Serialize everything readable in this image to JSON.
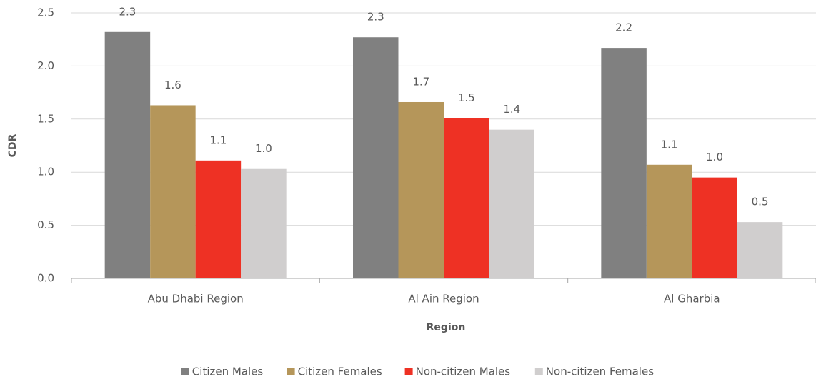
{
  "chart_data": {
    "type": "bar",
    "x_label": "Region",
    "y_label": "CDR",
    "categories": [
      "Abu Dhabi Region",
      "Al Ain  Region",
      "Al Gharbia"
    ],
    "series": [
      {
        "name": "Citizen Males",
        "color": "#808080",
        "values": [
          2.32,
          2.27,
          2.17
        ],
        "value_labels": [
          "2.3",
          "2.3",
          "2.2"
        ]
      },
      {
        "name": "Citizen Females",
        "color": "#b5965a",
        "values": [
          1.63,
          1.66,
          1.07
        ],
        "value_labels": [
          "1.6",
          "1.7",
          "1.1"
        ]
      },
      {
        "name": "Non-citizen Males",
        "color": "#ee3124",
        "values": [
          1.11,
          1.51,
          0.95
        ],
        "value_labels": [
          "1.1",
          "1.5",
          "1.0"
        ]
      },
      {
        "name": "Non-citizen Females",
        "color": "#d0cece",
        "values": [
          1.03,
          1.4,
          0.53
        ],
        "value_labels": [
          "1.0",
          "1.4",
          "0.5"
        ]
      }
    ],
    "ylim": [
      0,
      2.5
    ],
    "yticks": [
      {
        "value": 0,
        "label": "0.0"
      },
      0.5,
      {
        "value": 1,
        "label": "1.0"
      },
      1.5,
      {
        "value": 2,
        "label": "2.0"
      },
      2.5
    ],
    "grid": true,
    "legend": "bottom"
  }
}
